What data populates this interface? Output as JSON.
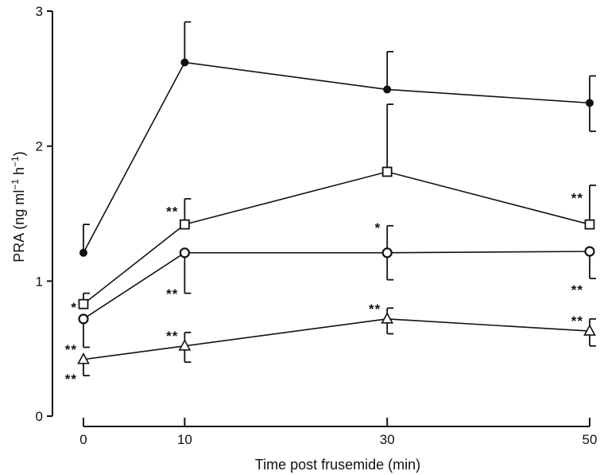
{
  "chart_data": {
    "type": "line",
    "title": "",
    "xlabel": "Time post frusemide (min)",
    "ylabel": "PRA (ng ml",
    "ylabel_sup1": "−1",
    "ylabel_mid": " h",
    "ylabel_sup2": "−1",
    "ylabel_end": ")",
    "x": [
      0,
      10,
      30,
      50
    ],
    "x_ticks": [
      "0",
      "10",
      "30",
      "50"
    ],
    "y_ticks": [
      "0",
      "1",
      "2",
      "3"
    ],
    "ylim": [
      0,
      3
    ],
    "grid": false,
    "legend": "none",
    "series": [
      {
        "marker": "filled-circle",
        "values": [
          1.21,
          2.62,
          2.42,
          2.32
        ],
        "error_plus": [
          0.21,
          0.3,
          0.28,
          0.2
        ],
        "error_minus": [
          0,
          0,
          0,
          0.21
        ]
      },
      {
        "marker": "open-square",
        "values": [
          0.83,
          1.42,
          1.81,
          1.42
        ],
        "error_plus": [
          0.08,
          0.19,
          0.5,
          0.29
        ],
        "error_minus": [
          0,
          0,
          0,
          0
        ]
      },
      {
        "marker": "open-circle",
        "values": [
          0.72,
          1.21,
          1.21,
          1.22
        ],
        "error_plus": [
          0,
          0,
          0.2,
          0
        ],
        "error_minus": [
          0.21,
          0.3,
          0.2,
          0.2
        ]
      },
      {
        "marker": "open-triangle",
        "values": [
          0.42,
          0.52,
          0.72,
          0.63
        ],
        "error_plus": [
          0,
          0.1,
          0.08,
          0.09
        ],
        "error_minus": [
          0.12,
          0.12,
          0.11,
          0.11
        ]
      }
    ],
    "annotations": [
      {
        "text": "*",
        "x": 0,
        "y": 0.83,
        "side": "left"
      },
      {
        "text": "**",
        "x": 0,
        "y": 0.52,
        "side": "left"
      },
      {
        "text": "**",
        "x": 0,
        "y": 0.3,
        "side": "left"
      },
      {
        "text": "**",
        "x": 10,
        "y": 1.54,
        "side": "left"
      },
      {
        "text": "**",
        "x": 10,
        "y": 0.93,
        "side": "left"
      },
      {
        "text": "**",
        "x": 10,
        "y": 0.62,
        "side": "left"
      },
      {
        "text": "*",
        "x": 30,
        "y": 1.42,
        "side": "left"
      },
      {
        "text": "**",
        "x": 30,
        "y": 0.82,
        "side": "left"
      },
      {
        "text": "**",
        "x": 50,
        "y": 1.64,
        "side": "left"
      },
      {
        "text": "**",
        "x": 50,
        "y": 0.96,
        "side": "left"
      },
      {
        "text": "**",
        "x": 50,
        "y": 0.73,
        "side": "left"
      }
    ]
  }
}
